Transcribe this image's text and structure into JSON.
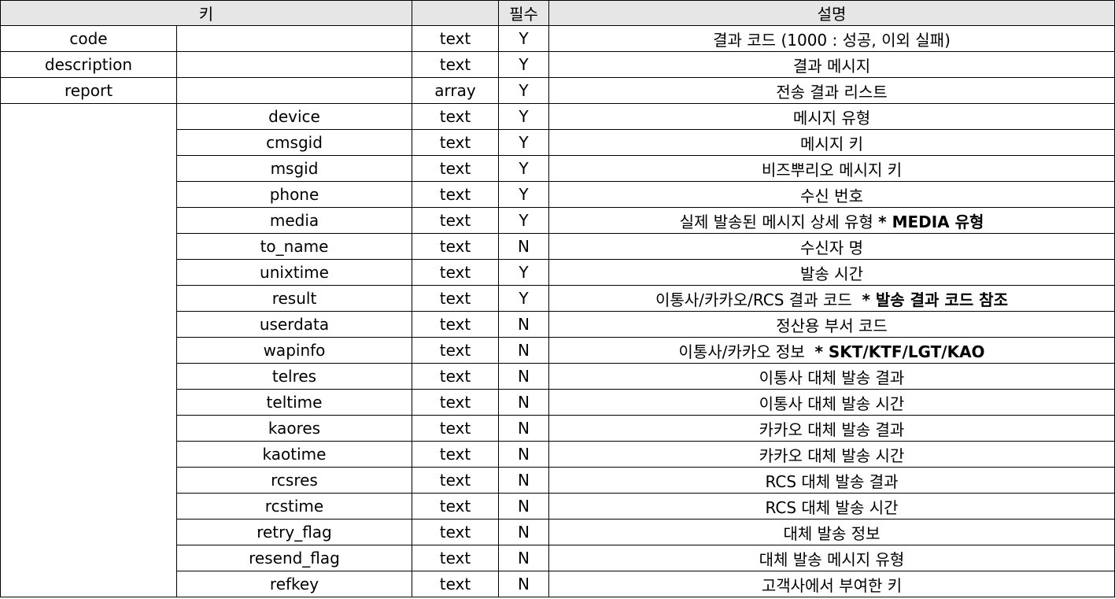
{
  "header": {
    "key": "키",
    "type": "",
    "required": "필수",
    "description": "설명"
  },
  "top_rows": [
    {
      "key": "code",
      "type": "text",
      "required": "Y",
      "desc": "결과 코드 (1000 : 성공, 이외 실패)"
    },
    {
      "key": "description",
      "type": "text",
      "required": "Y",
      "desc": "결과 메시지"
    },
    {
      "key": "report",
      "type": "array",
      "required": "Y",
      "desc": "전송 결과 리스트"
    }
  ],
  "report_rows": [
    {
      "key": "device",
      "type": "text",
      "required": "Y",
      "desc": "메시지 유형",
      "note": ""
    },
    {
      "key": "cmsgid",
      "type": "text",
      "required": "Y",
      "desc": "메시지 키",
      "note": ""
    },
    {
      "key": "msgid",
      "type": "text",
      "required": "Y",
      "desc": "비즈뿌리오 메시지 키",
      "note": ""
    },
    {
      "key": "phone",
      "type": "text",
      "required": "Y",
      "desc": "수신 번호",
      "note": ""
    },
    {
      "key": "media",
      "type": "text",
      "required": "Y",
      "desc": "실제 발송된 메시지 상세 유형 ",
      "note": "* MEDIA 유형"
    },
    {
      "key": "to_name",
      "type": "text",
      "required": "N",
      "desc": "수신자 명",
      "note": ""
    },
    {
      "key": "unixtime",
      "type": "text",
      "required": "Y",
      "desc": "발송 시간",
      "note": ""
    },
    {
      "key": "result",
      "type": "text",
      "required": "Y",
      "desc": "이통사/카카오/RCS 결과 코드  ",
      "note": "* 발송 결과 코드 참조"
    },
    {
      "key": "userdata",
      "type": "text",
      "required": "N",
      "desc": "정산용 부서 코드",
      "note": ""
    },
    {
      "key": "wapinfo",
      "type": "text",
      "required": "N",
      "desc": "이통사/카카오 정보  ",
      "note": "* SKT/KTF/LGT/KAO"
    },
    {
      "key": "telres",
      "type": "text",
      "required": "N",
      "desc": "이통사 대체 발송 결과",
      "note": ""
    },
    {
      "key": "teltime",
      "type": "text",
      "required": "N",
      "desc": "이통사 대체 발송 시간",
      "note": ""
    },
    {
      "key": "kaores",
      "type": "text",
      "required": "N",
      "desc": "카카오 대체 발송 결과",
      "note": ""
    },
    {
      "key": "kaotime",
      "type": "text",
      "required": "N",
      "desc": "카카오 대체 발송 시간",
      "note": ""
    },
    {
      "key": "rcsres",
      "type": "text",
      "required": "N",
      "desc": "RCS 대체 발송 결과",
      "note": ""
    },
    {
      "key": "rcstime",
      "type": "text",
      "required": "N",
      "desc": "RCS 대체 발송 시간",
      "note": ""
    },
    {
      "key": "retry_flag",
      "type": "text",
      "required": "N",
      "desc": "대체 발송 정보",
      "note": ""
    },
    {
      "key": "resend_flag",
      "type": "text",
      "required": "N",
      "desc": "대체 발송 메시지 유형",
      "note": ""
    },
    {
      "key": "refkey",
      "type": "text",
      "required": "N",
      "desc": "고객사에서 부여한 키",
      "note": ""
    }
  ]
}
